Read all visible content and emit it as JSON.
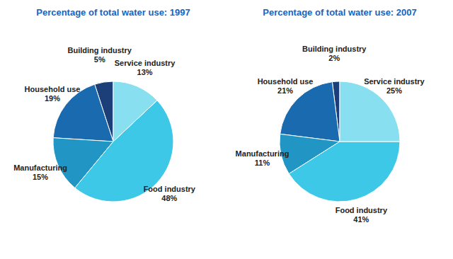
{
  "chart_data": [
    {
      "type": "pie",
      "title": "Percentage of total water use: 1997",
      "categories": [
        "Building industry",
        "Household use",
        "Manufacturing",
        "Food industry",
        "Service industry"
      ],
      "values": [
        5,
        19,
        15,
        48,
        13
      ],
      "value_labels": [
        "5%",
        "19%",
        "15%",
        "48%",
        "13%"
      ],
      "colors": [
        "#1c3f7a",
        "#1a6ab0",
        "#2196c4",
        "#3ec8e8",
        "#88dff0"
      ],
      "data_labels": true
    },
    {
      "type": "pie",
      "title": "Percentage of total water use: 2007",
      "categories": [
        "Building industry",
        "Household use",
        "Manufacturing",
        "Food industry",
        "Service industry"
      ],
      "values": [
        2,
        21,
        11,
        41,
        25
      ],
      "value_labels": [
        "2%",
        "21%",
        "11%",
        "41%",
        "25%"
      ],
      "colors": [
        "#1c3f7a",
        "#1a6ab0",
        "#2196c4",
        "#3ec8e8",
        "#88dff0"
      ],
      "data_labels": true
    }
  ]
}
